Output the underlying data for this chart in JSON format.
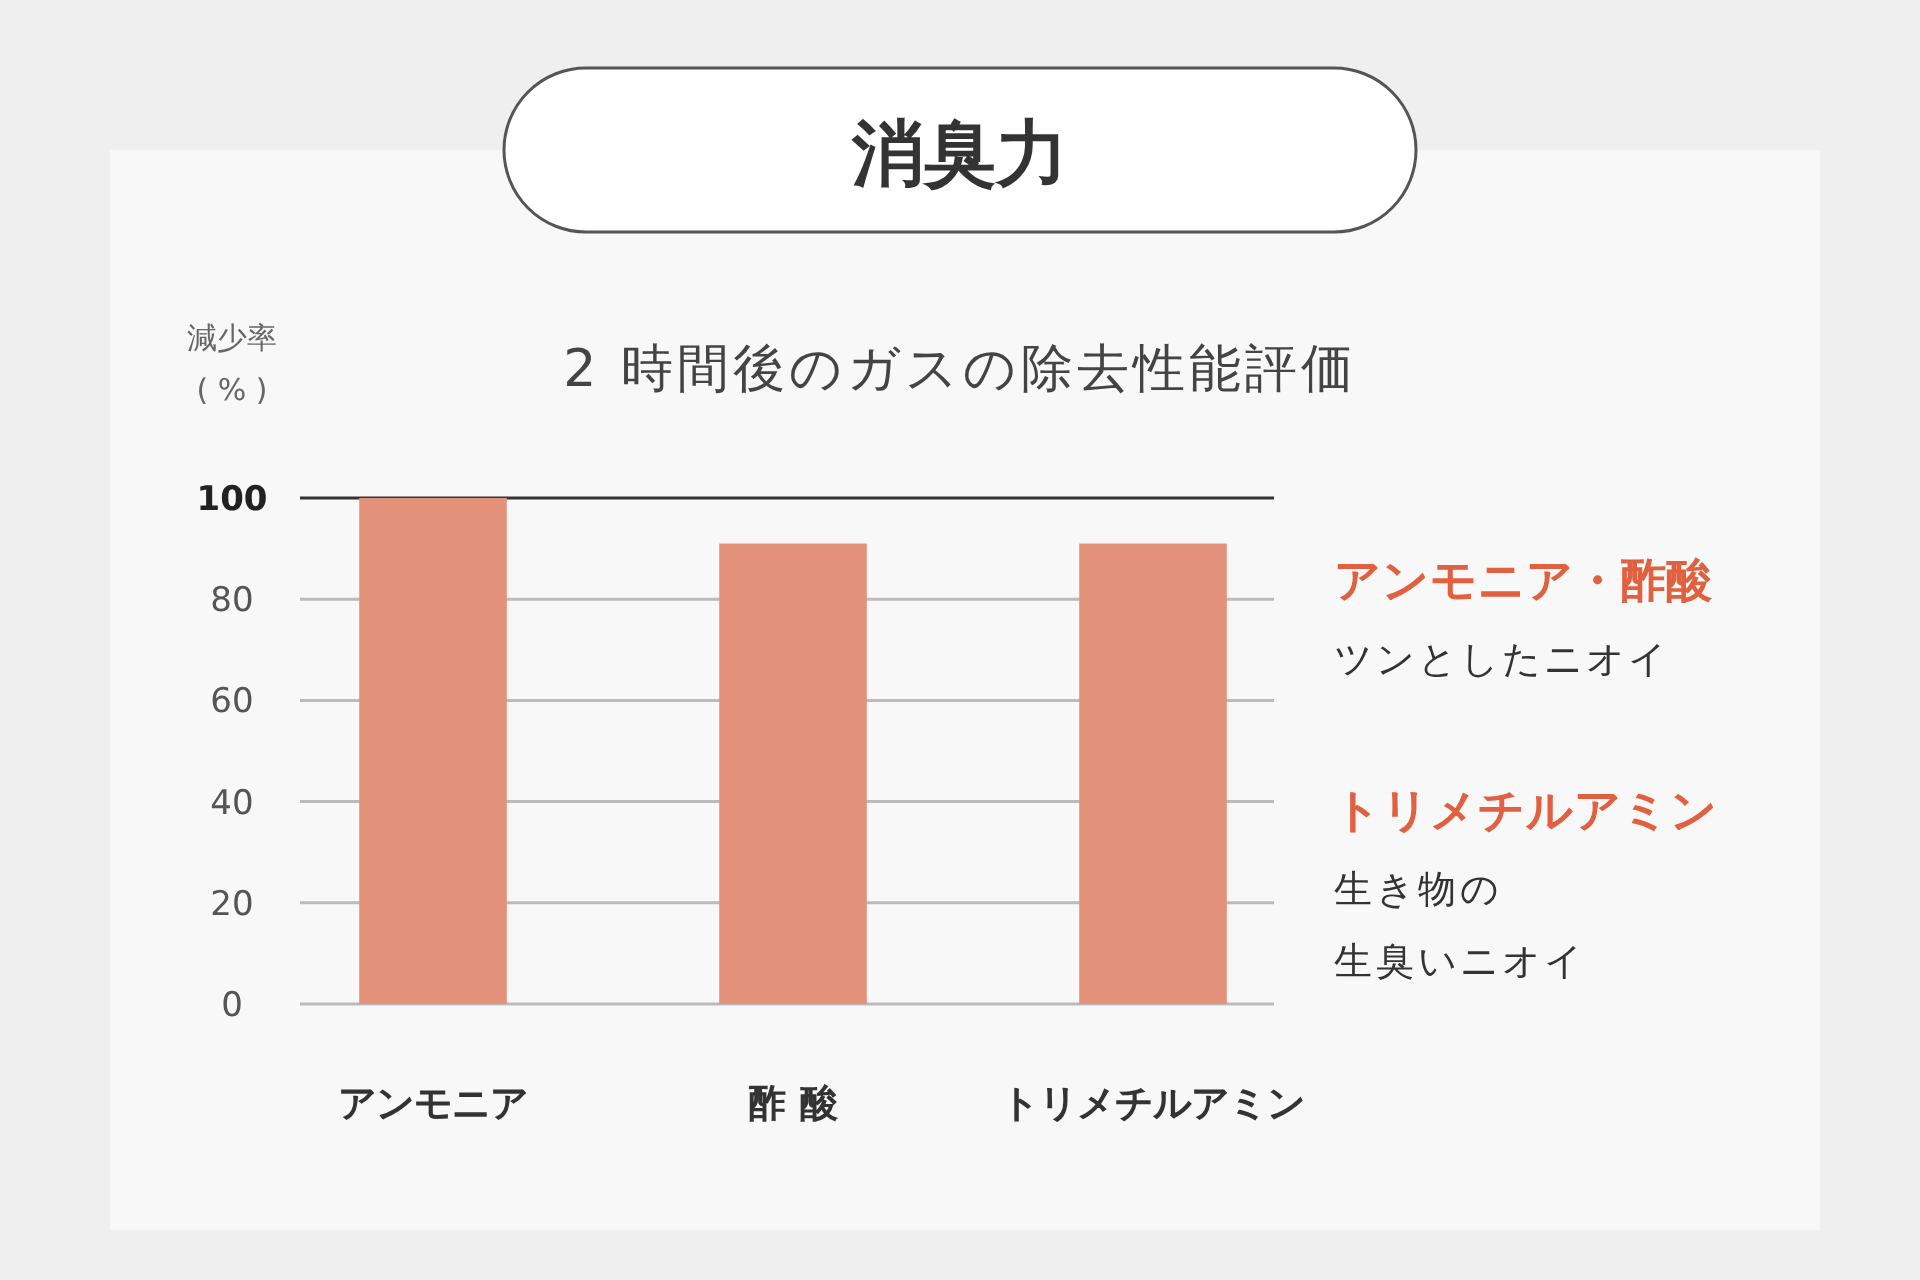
{
  "chart_data": {
    "type": "bar",
    "title": "消臭力",
    "subtitle": "2 時間後のガスの除去性能評価",
    "ylabel": "減少率\n( % )",
    "categories": [
      "アンモニア",
      "酢 酸",
      "トリメチルアミン"
    ],
    "values": [
      100,
      91,
      91
    ],
    "color": "#e4917c",
    "ylim": [
      0,
      100
    ],
    "yticks": [
      0,
      20,
      40,
      60,
      80,
      100
    ],
    "grid": "y",
    "annotations": [
      "アンモニア・酢酸",
      "ツンとしたニオイ",
      "トリメチルアミン",
      "生き物の",
      "生臭いニオイ"
    ]
  }
}
